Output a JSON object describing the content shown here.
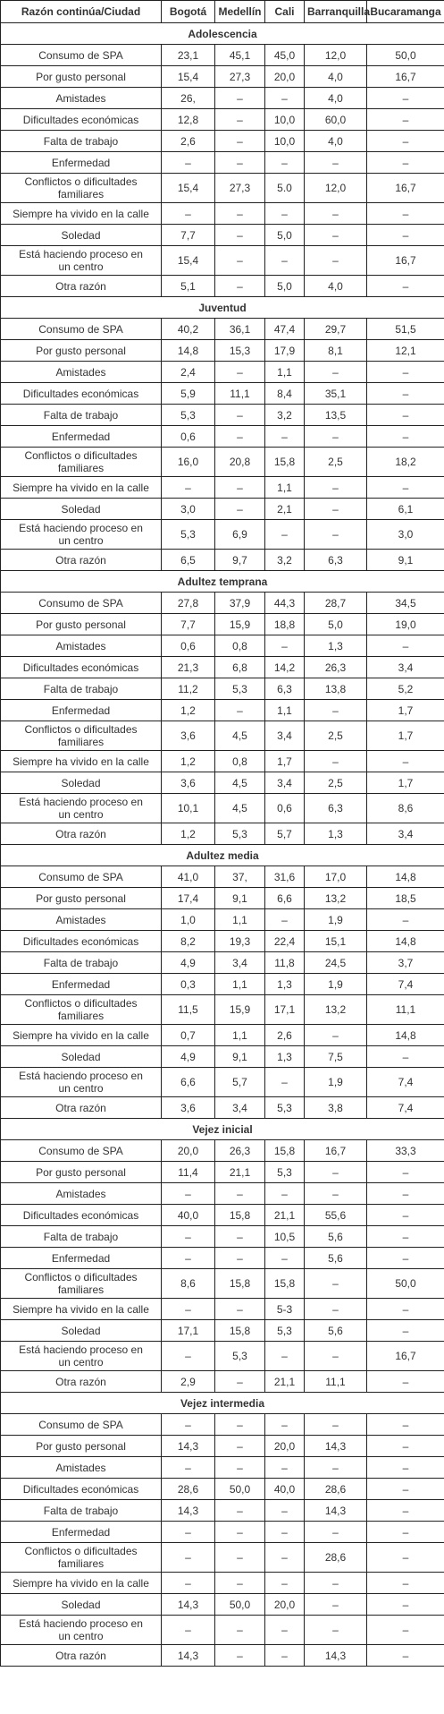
{
  "header": [
    "Razón continúa/Ciudad",
    "Bogotá",
    "Medellín",
    "Cali",
    "Barranquilla",
    "Bucaramanga"
  ],
  "sections": [
    {
      "title": "Adolescencia",
      "rows": [
        {
          "label": "Consumo de SPA",
          "values": [
            "23,1",
            "45,1",
            "45,0",
            "12,0",
            "50,0"
          ]
        },
        {
          "label": "Por gusto personal",
          "values": [
            "15,4",
            "27,3",
            "20,0",
            "4,0",
            "16,7"
          ]
        },
        {
          "label": "Amistades",
          "values": [
            "26,",
            "–",
            "–",
            "4,0",
            "–"
          ]
        },
        {
          "label": "Dificultades económicas",
          "values": [
            "12,8",
            "–",
            "10,0",
            "60,0",
            "–"
          ]
        },
        {
          "label": "Falta de trabajo",
          "values": [
            "2,6",
            "–",
            "10,0",
            "4,0",
            "–"
          ]
        },
        {
          "label": "Enfermedad",
          "values": [
            "–",
            "–",
            "–",
            "–",
            "–"
          ]
        },
        {
          "label": "Conflictos o dificultades familiares",
          "values": [
            "15,4",
            "27,3",
            "5.0",
            "12,0",
            "16,7"
          ]
        },
        {
          "label": "Siempre ha vivido en la calle",
          "values": [
            "–",
            "–",
            "–",
            "–",
            "–"
          ]
        },
        {
          "label": "Soledad",
          "values": [
            "7,7",
            "–",
            "5,0",
            "–",
            "–"
          ]
        },
        {
          "label": "Está haciendo proceso en un centro",
          "values": [
            "15,4",
            "–",
            "–",
            "–",
            "16,7"
          ]
        },
        {
          "label": "Otra razón",
          "values": [
            "5,1",
            "–",
            "5,0",
            "4,0",
            "–"
          ]
        }
      ]
    },
    {
      "title": "Juventud",
      "rows": [
        {
          "label": "Consumo de SPA",
          "values": [
            "40,2",
            "36,1",
            "47,4",
            "29,7",
            "51,5"
          ]
        },
        {
          "label": "Por gusto personal",
          "values": [
            "14,8",
            "15,3",
            "17,9",
            "8,1",
            "12,1"
          ]
        },
        {
          "label": "Amistades",
          "values": [
            "2,4",
            "–",
            "1,1",
            "–",
            "–"
          ]
        },
        {
          "label": "Dificultades económicas",
          "values": [
            "5,9",
            "11,1",
            "8,4",
            "35,1",
            "–"
          ]
        },
        {
          "label": "Falta de trabajo",
          "values": [
            "5,3",
            "–",
            "3,2",
            "13,5",
            "–"
          ]
        },
        {
          "label": "Enfermedad",
          "values": [
            "0,6",
            "–",
            "–",
            "–",
            "–"
          ]
        },
        {
          "label": "Conflictos o dificultades familiares",
          "values": [
            "16,0",
            "20,8",
            "15,8",
            "2,5",
            "18,2"
          ]
        },
        {
          "label": "Siempre ha vivido en la calle",
          "values": [
            "–",
            "–",
            "1,1",
            "–",
            "–"
          ]
        },
        {
          "label": "Soledad",
          "values": [
            "3,0",
            "–",
            "2,1",
            "–",
            "6,1"
          ]
        },
        {
          "label": "Está haciendo proceso en un centro",
          "values": [
            "5,3",
            "6,9",
            "–",
            "–",
            "3,0"
          ]
        },
        {
          "label": "Otra razón",
          "values": [
            "6,5",
            "9,7",
            "3,2",
            "6,3",
            "9,1"
          ]
        }
      ]
    },
    {
      "title": "Adultez temprana",
      "rows": [
        {
          "label": "Consumo de SPA",
          "values": [
            "27,8",
            "37,9",
            "44,3",
            "28,7",
            "34,5"
          ]
        },
        {
          "label": "Por gusto personal",
          "values": [
            "7,7",
            "15,9",
            "18,8",
            "5,0",
            "19,0"
          ]
        },
        {
          "label": "Amistades",
          "values": [
            "0,6",
            "0,8",
            "–",
            "1,3",
            "–"
          ]
        },
        {
          "label": "Dificultades económicas",
          "values": [
            "21,3",
            "6,8",
            "14,2",
            "26,3",
            "3,4"
          ]
        },
        {
          "label": "Falta de trabajo",
          "values": [
            "11,2",
            "5,3",
            "6,3",
            "13,8",
            "5,2"
          ]
        },
        {
          "label": "Enfermedad",
          "values": [
            "1,2",
            "–",
            "1,1",
            "–",
            "1,7"
          ]
        },
        {
          "label": "Conflictos o dificultades familiares",
          "values": [
            "3,6",
            "4,5",
            "3,4",
            "2,5",
            "1,7"
          ]
        },
        {
          "label": "Siempre ha vivido en la calle",
          "values": [
            "1,2",
            "0,8",
            "1,7",
            "–",
            "–"
          ]
        },
        {
          "label": "Soledad",
          "values": [
            "3,6",
            "4,5",
            "3,4",
            "2,5",
            "1,7"
          ]
        },
        {
          "label": "Está haciendo proceso en un centro",
          "values": [
            "10,1",
            "4,5",
            "0,6",
            "6,3",
            "8,6"
          ]
        },
        {
          "label": "Otra razón",
          "values": [
            "1,2",
            "5,3",
            "5,7",
            "1,3",
            "3,4"
          ]
        }
      ]
    },
    {
      "title": "Adultez media",
      "rows": [
        {
          "label": "Consumo de SPA",
          "values": [
            "41,0",
            "37,",
            "31,6",
            "17,0",
            "14,8"
          ]
        },
        {
          "label": "Por gusto personal",
          "values": [
            "17,4",
            "9,1",
            "6,6",
            "13,2",
            "18,5"
          ]
        },
        {
          "label": "Amistades",
          "values": [
            "1,0",
            "1,1",
            "–",
            "1,9",
            "–"
          ]
        },
        {
          "label": "Dificultades económicas",
          "values": [
            "8,2",
            "19,3",
            "22,4",
            "15,1",
            "14,8"
          ]
        },
        {
          "label": "Falta de trabajo",
          "values": [
            "4,9",
            "3,4",
            "11,8",
            "24,5",
            "3,7"
          ]
        },
        {
          "label": "Enfermedad",
          "values": [
            "0,3",
            "1,1",
            "1,3",
            "1,9",
            "7,4"
          ]
        },
        {
          "label": "Conflictos o dificultades familiares",
          "values": [
            "11,5",
            "15,9",
            "17,1",
            "13,2",
            "11,1"
          ]
        },
        {
          "label": "Siempre ha vivido en la calle",
          "values": [
            "0,7",
            "1,1",
            "2,6",
            "–",
            "14,8"
          ]
        },
        {
          "label": "Soledad",
          "values": [
            "4,9",
            "9,1",
            "1,3",
            "7,5",
            "–"
          ]
        },
        {
          "label": "Está haciendo proceso en un centro",
          "values": [
            "6,6",
            "5,7",
            "–",
            "1,9",
            "7,4"
          ]
        },
        {
          "label": "Otra razón",
          "values": [
            "3,6",
            "3,4",
            "5,3",
            "3,8",
            "7,4"
          ]
        }
      ]
    },
    {
      "title": "Vejez inicial",
      "rows": [
        {
          "label": "Consumo de SPA",
          "values": [
            "20,0",
            "26,3",
            "15,8",
            "16,7",
            "33,3"
          ]
        },
        {
          "label": "Por gusto personal",
          "values": [
            "11,4",
            "21,1",
            "5,3",
            "–",
            "–"
          ]
        },
        {
          "label": "Amistades",
          "values": [
            "–",
            "–",
            "–",
            "–",
            "–"
          ]
        },
        {
          "label": "Dificultades económicas",
          "values": [
            "40,0",
            "15,8",
            "21,1",
            "55,6",
            "–"
          ]
        },
        {
          "label": "Falta de trabajo",
          "values": [
            "–",
            "–",
            "10,5",
            "5,6",
            "–"
          ]
        },
        {
          "label": "Enfermedad",
          "values": [
            "–",
            "–",
            "–",
            "5,6",
            "–"
          ]
        },
        {
          "label": "Conflictos o dificultades familiares",
          "values": [
            "8,6",
            "15,8",
            "15,8",
            "–",
            "50,0"
          ]
        },
        {
          "label": "Siempre ha vivido en la calle",
          "values": [
            "–",
            "–",
            "5-3",
            "–",
            "–"
          ]
        },
        {
          "label": "Soledad",
          "values": [
            "17,1",
            "15,8",
            "5,3",
            "5,6",
            "–"
          ]
        },
        {
          "label": "Está haciendo proceso en un centro",
          "values": [
            "–",
            "5,3",
            "–",
            "–",
            "16,7"
          ]
        },
        {
          "label": "Otra razón",
          "values": [
            "2,9",
            "–",
            "21,1",
            "11,1",
            "–"
          ]
        }
      ]
    },
    {
      "title": "Vejez intermedia",
      "rows": [
        {
          "label": "Consumo de SPA",
          "values": [
            "–",
            "–",
            "–",
            "–",
            "–"
          ]
        },
        {
          "label": "Por gusto personal",
          "values": [
            "14,3",
            "–",
            "20,0",
            "14,3",
            "–"
          ]
        },
        {
          "label": "Amistades",
          "values": [
            "–",
            "–",
            "–",
            "–",
            "–"
          ]
        },
        {
          "label": "Dificultades económicas",
          "values": [
            "28,6",
            "50,0",
            "40,0",
            "28,6",
            "–"
          ]
        },
        {
          "label": "Falta de trabajo",
          "values": [
            "14,3",
            "–",
            "–",
            "14,3",
            "–"
          ]
        },
        {
          "label": "Enfermedad",
          "values": [
            "–",
            "–",
            "–",
            "–",
            "–"
          ]
        },
        {
          "label": "Conflictos o dificultades familiares",
          "values": [
            "–",
            "–",
            "–",
            "28,6",
            "–"
          ]
        },
        {
          "label": "Siempre ha vivido en la calle",
          "values": [
            "–",
            "–",
            "–",
            "–",
            "–"
          ]
        },
        {
          "label": "Soledad",
          "values": [
            "14,3",
            "50,0",
            "20,0",
            "–",
            "–"
          ]
        },
        {
          "label": "Está haciendo proceso en un centro",
          "values": [
            "–",
            "–",
            "–",
            "–",
            "–"
          ]
        },
        {
          "label": "Otra razón",
          "values": [
            "14,3",
            "–",
            "–",
            "14,3",
            "–"
          ]
        }
      ]
    }
  ]
}
